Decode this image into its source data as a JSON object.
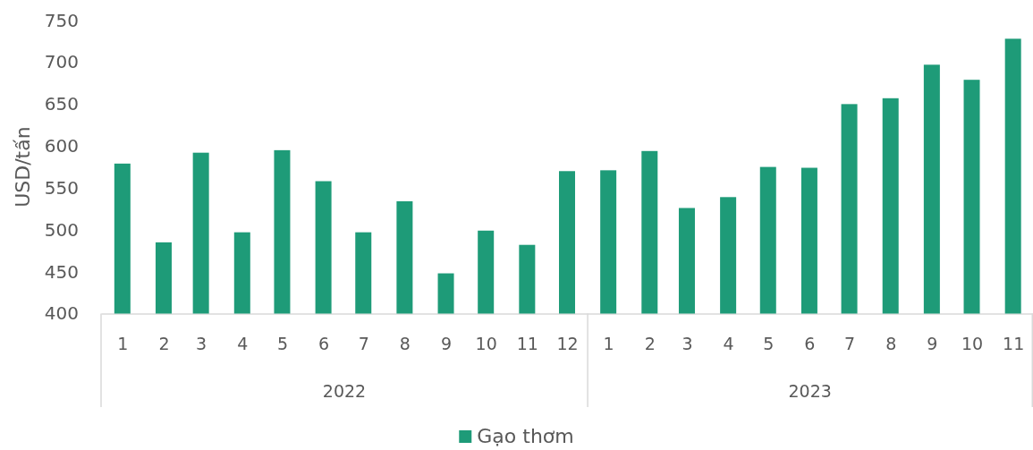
{
  "chart_data": {
    "type": "bar",
    "ylabel": "USD/tấn",
    "x": [
      "2022-01",
      "2022-02",
      "2022-03",
      "2022-04",
      "2022-05",
      "2022-06",
      "2022-07",
      "2022-08",
      "2022-09",
      "2022-10",
      "2022-11",
      "2022-12",
      "2023-01",
      "2023-02",
      "2023-03",
      "2023-04",
      "2023-05",
      "2023-06",
      "2023-07",
      "2023-08",
      "2023-09",
      "2023-10",
      "2023-11"
    ],
    "xlim": [
      "2021-12-16",
      "2023-11-16"
    ],
    "xticks": [
      {
        "value": "2022-01",
        "label": "1"
      },
      {
        "value": "2022-02",
        "label": "2"
      },
      {
        "value": "2022-03",
        "label": "3"
      },
      {
        "value": "2022-04",
        "label": "4"
      },
      {
        "value": "2022-05",
        "label": "5"
      },
      {
        "value": "2022-06",
        "label": "6"
      },
      {
        "value": "2022-07",
        "label": "7"
      },
      {
        "value": "2022-08",
        "label": "8"
      },
      {
        "value": "2022-09",
        "label": "9"
      },
      {
        "value": "2022-10",
        "label": "10"
      },
      {
        "value": "2022-11",
        "label": "11"
      },
      {
        "value": "2022-12",
        "label": "12"
      },
      {
        "value": "2023-01",
        "label": "1"
      },
      {
        "value": "2023-02",
        "label": "2"
      },
      {
        "value": "2023-03",
        "label": "3"
      },
      {
        "value": "2023-04",
        "label": "4"
      },
      {
        "value": "2023-05",
        "label": "5"
      },
      {
        "value": "2023-06",
        "label": "6"
      },
      {
        "value": "2023-07",
        "label": "7"
      },
      {
        "value": "2023-08",
        "label": "8"
      },
      {
        "value": "2023-09",
        "label": "9"
      },
      {
        "value": "2023-10",
        "label": "10"
      },
      {
        "value": "2023-11",
        "label": "11"
      }
    ],
    "annotations": [
      "2022",
      "2023"
    ],
    "series": [
      {
        "name": "Gạo thơm",
        "color": "#1e9b78",
        "values": [
          579,
          485,
          592,
          497,
          595,
          558,
          497,
          534,
          448,
          499,
          482,
          570,
          571,
          594,
          526,
          539,
          575,
          574,
          650,
          657,
          697,
          679,
          728
        ]
      }
    ],
    "ylim": [
      400,
      750
    ],
    "yticks": [
      400,
      450,
      500,
      550,
      600,
      650,
      700,
      750
    ],
    "legend": "bottom"
  }
}
